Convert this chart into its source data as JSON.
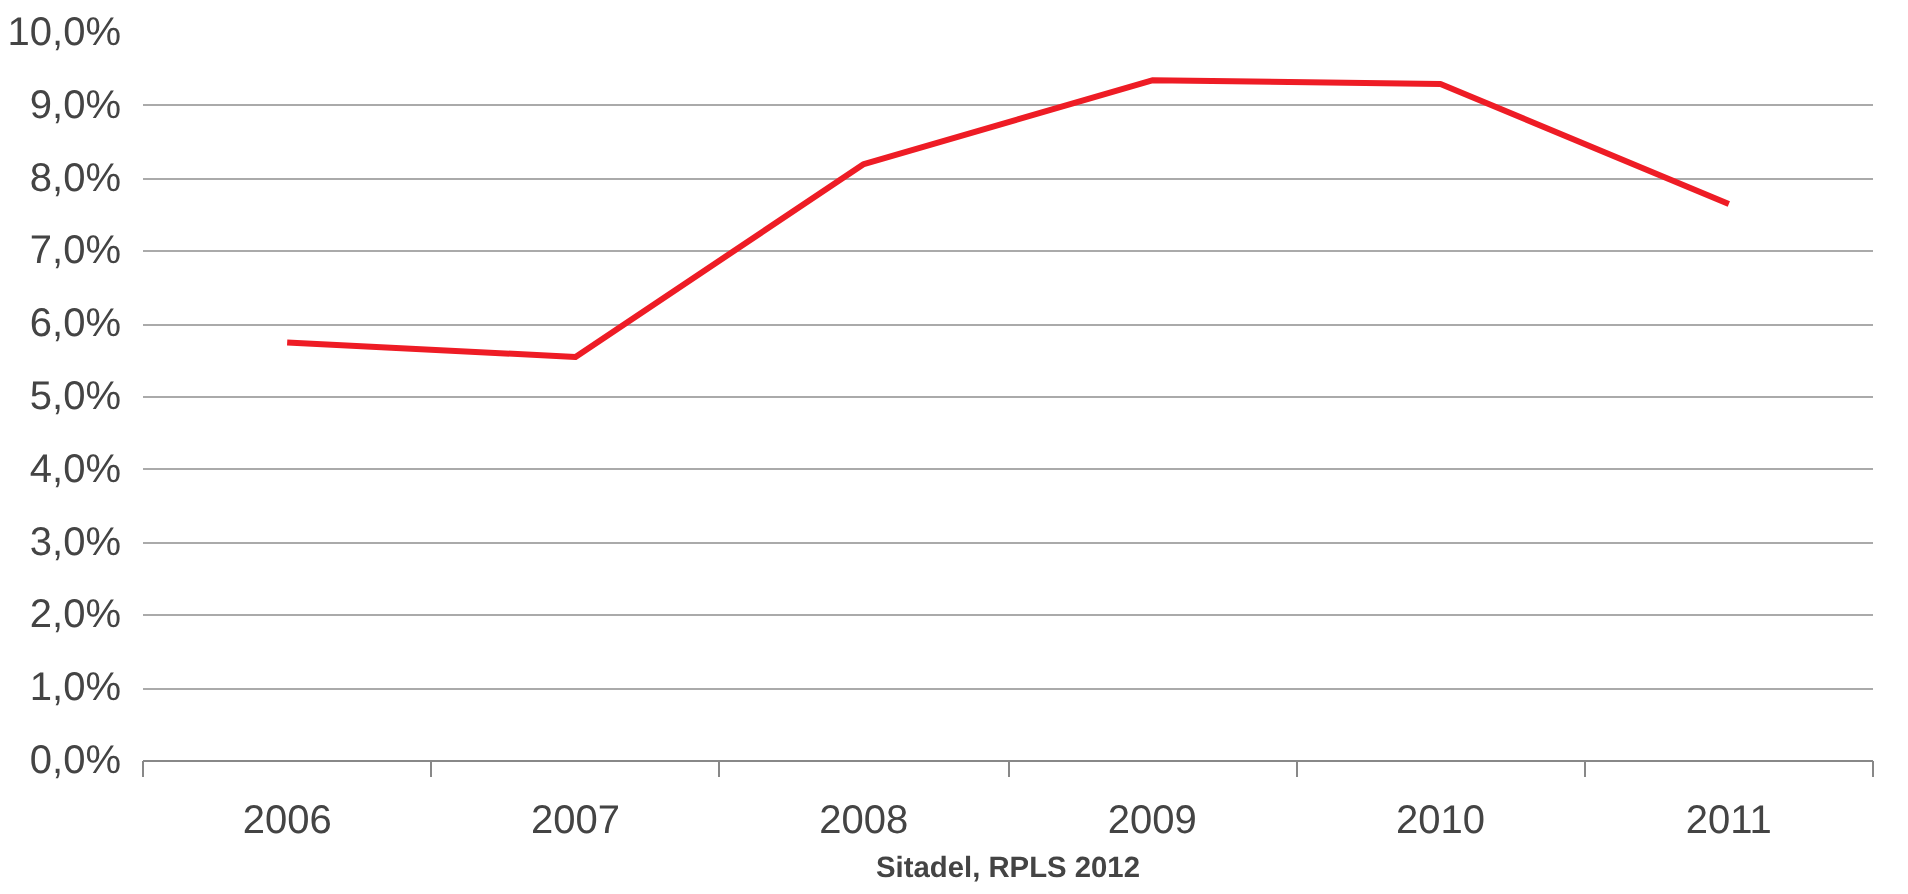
{
  "chart_data": {
    "type": "line",
    "categories": [
      "2006",
      "2007",
      "2008",
      "2009",
      "2010",
      "2011"
    ],
    "series": [
      {
        "color": "#ee1c25",
        "values": [
          5.75,
          5.55,
          8.2,
          9.35,
          9.3,
          7.65
        ]
      }
    ],
    "ylim": [
      0,
      10
    ],
    "yticks": [
      {
        "value": 0,
        "label": "0,0%"
      },
      {
        "value": 1,
        "label": "1,0%"
      },
      {
        "value": 2,
        "label": "2,0%"
      },
      {
        "value": 3,
        "label": "3,0%"
      },
      {
        "value": 4,
        "label": "4,0%"
      },
      {
        "value": 5,
        "label": "5,0%"
      },
      {
        "value": 6,
        "label": "6,0%"
      },
      {
        "value": 7,
        "label": "7,0%"
      },
      {
        "value": 8,
        "label": "8,0%"
      },
      {
        "value": 9,
        "label": "9,0%"
      },
      {
        "value": 10,
        "label": "10,0%"
      }
    ],
    "grid": "y",
    "marker": "none",
    "line_style": "solid",
    "annotations": [
      "Sitadel, RPLS 2012"
    ]
  }
}
